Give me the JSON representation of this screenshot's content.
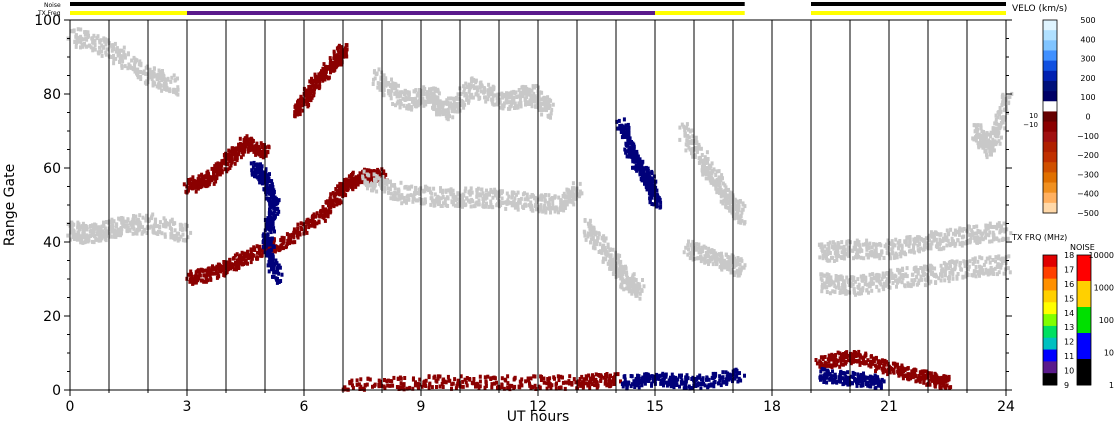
{
  "chart_data": {
    "type": "scatter",
    "title": "",
    "xlabel": "UT hours",
    "ylabel": "Range Gate",
    "xlim": [
      0,
      24
    ],
    "ylim": [
      0,
      100
    ],
    "x_ticks": [
      0,
      3,
      6,
      9,
      12,
      15,
      18,
      21,
      24
    ],
    "x_tick_labels": [
      "0",
      "3",
      "6",
      "9",
      "12",
      "15",
      "18",
      "21",
      "24"
    ],
    "y_ticks": [
      0,
      20,
      40,
      60,
      80,
      100
    ],
    "y_tick_labels": [
      "0",
      "20",
      "40",
      "60",
      "80",
      "100"
    ],
    "scan_boundaries": [
      1,
      2,
      3,
      4,
      5,
      6,
      7,
      8,
      9,
      10,
      11,
      12,
      13,
      14,
      15,
      16,
      17,
      18,
      19,
      20,
      21,
      22,
      23
    ],
    "data_gaps": [
      [
        17.3,
        19.0
      ]
    ],
    "strip_labels": [
      "Noise",
      "TX Freq"
    ],
    "noise_strip_segments": [
      [
        0,
        17.3,
        "#000000"
      ],
      [
        19.0,
        24,
        "#000000"
      ]
    ],
    "txfreq_strip_segments": [
      [
        0,
        3,
        "#ffff00"
      ],
      [
        3,
        15,
        "#5a1a8c"
      ],
      [
        15,
        17.3,
        "#ffff00"
      ],
      [
        19.0,
        24,
        "#ffff00"
      ]
    ],
    "echo_regions": [
      {
        "class": "ground_scatter",
        "color": "#c8c8c8",
        "points": [
          [
            0,
            43
          ],
          [
            0.5,
            42
          ],
          [
            1.2,
            44
          ],
          [
            2,
            45
          ],
          [
            3,
            42
          ]
        ]
      },
      {
        "class": "ground_scatter",
        "color": "#c8c8c8",
        "points": [
          [
            0,
            96
          ],
          [
            1,
            92
          ],
          [
            2,
            85
          ],
          [
            2.7,
            82
          ]
        ]
      },
      {
        "class": "negative_velocity",
        "color": "#8b0000",
        "points": [
          [
            3,
            55
          ],
          [
            3.5,
            57
          ],
          [
            4,
            62
          ],
          [
            4.5,
            67
          ],
          [
            5,
            64
          ]
        ]
      },
      {
        "class": "negative_velocity",
        "color": "#8b0000",
        "points": [
          [
            3,
            30
          ],
          [
            3.8,
            32
          ],
          [
            4.5,
            36
          ],
          [
            5.5,
            40
          ],
          [
            6.5,
            48
          ],
          [
            7,
            55
          ],
          [
            7.5,
            58
          ],
          [
            8,
            58
          ]
        ]
      },
      {
        "class": "negative_velocity",
        "color": "#8b0000",
        "points": [
          [
            5.8,
            75
          ],
          [
            6.2,
            82
          ],
          [
            6.7,
            88
          ],
          [
            7,
            92
          ]
        ]
      },
      {
        "class": "positive_velocity",
        "color": "#00007a",
        "points": [
          [
            4.7,
            60
          ],
          [
            5,
            57
          ],
          [
            5.2,
            50
          ],
          [
            5,
            40
          ],
          [
            5.3,
            30
          ]
        ]
      },
      {
        "class": "ground_scatter",
        "color": "#c8c8c8",
        "points": [
          [
            7.5,
            57
          ],
          [
            8.5,
            53
          ],
          [
            9.5,
            52
          ],
          [
            10.5,
            52
          ],
          [
            11.5,
            51
          ],
          [
            12.5,
            50
          ],
          [
            13,
            54
          ]
        ]
      },
      {
        "class": "ground_scatter",
        "color": "#c8c8c8",
        "points": [
          [
            7.8,
            85
          ],
          [
            8.5,
            78
          ],
          [
            9.2,
            80
          ],
          [
            9.6,
            75
          ],
          [
            10.3,
            82
          ],
          [
            11.2,
            78
          ],
          [
            11.8,
            80
          ],
          [
            12.3,
            75
          ]
        ]
      },
      {
        "class": "positive_velocity",
        "color": "#00007a",
        "points": [
          [
            14.1,
            72
          ],
          [
            14.4,
            63
          ],
          [
            14.8,
            57
          ],
          [
            15,
            50
          ]
        ]
      },
      {
        "class": "ground_scatter",
        "color": "#c8c8c8",
        "points": [
          [
            13.2,
            44
          ],
          [
            13.8,
            36
          ],
          [
            14.2,
            30
          ],
          [
            14.6,
            27
          ]
        ]
      },
      {
        "class": "ground_scatter",
        "color": "#c8c8c8",
        "points": [
          [
            15.7,
            70
          ],
          [
            16.3,
            60
          ],
          [
            16.8,
            52
          ],
          [
            17.2,
            47
          ]
        ]
      },
      {
        "class": "ground_scatter",
        "color": "#c8c8c8",
        "points": [
          [
            15.8,
            38
          ],
          [
            16.6,
            35
          ],
          [
            17.2,
            33
          ]
        ]
      },
      {
        "class": "negative_velocity",
        "color": "#8b0000",
        "points": [
          [
            7,
            1
          ],
          [
            9,
            2
          ],
          [
            11,
            2
          ],
          [
            13,
            2
          ],
          [
            14,
            3
          ]
        ]
      },
      {
        "class": "positive_velocity",
        "color": "#00007a",
        "points": [
          [
            14.2,
            2
          ],
          [
            15,
            3
          ],
          [
            16,
            2
          ],
          [
            17.2,
            4
          ]
        ]
      },
      {
        "class": "ground_scatter",
        "color": "#c8c8c8",
        "points": [
          [
            19.2,
            37
          ],
          [
            20,
            38
          ],
          [
            21,
            38
          ],
          [
            22,
            40
          ],
          [
            23,
            42
          ],
          [
            24,
            43
          ]
        ]
      },
      {
        "class": "ground_scatter",
        "color": "#c8c8c8",
        "points": [
          [
            19.2,
            29
          ],
          [
            20,
            28
          ],
          [
            21,
            30
          ],
          [
            22,
            31
          ],
          [
            23,
            33
          ],
          [
            24,
            34
          ]
        ]
      },
      {
        "class": "ground_scatter",
        "color": "#c8c8c8",
        "points": [
          [
            23.2,
            70
          ],
          [
            23.6,
            65
          ],
          [
            24,
            80
          ]
        ]
      },
      {
        "class": "negative_velocity",
        "color": "#8b0000",
        "points": [
          [
            19.2,
            7
          ],
          [
            20,
            9
          ],
          [
            21,
            6
          ],
          [
            22,
            3
          ],
          [
            22.5,
            2
          ]
        ]
      },
      {
        "class": "positive_velocity",
        "color": "#00007a",
        "points": [
          [
            19.2,
            4
          ],
          [
            20,
            3
          ],
          [
            20.8,
            2
          ]
        ]
      }
    ],
    "colorbars": [
      {
        "label": "VELO (km/s)",
        "tick_labels": [
          "500",
          "400",
          "300",
          "200",
          "100",
          "0",
          "−100",
          "−200",
          "−300",
          "−400",
          "−500"
        ],
        "split_labels": [
          "10",
          "−10"
        ],
        "colors": [
          "#dff4ff",
          "#b0e0ff",
          "#80c4ff",
          "#4090ff",
          "#1050e0",
          "#0020b0",
          "#00107a",
          "#000066",
          "#ffffff",
          "#660000",
          "#8b0000",
          "#a01010",
          "#b02000",
          "#c03000",
          "#d05000",
          "#e07000",
          "#f09020",
          "#ffb060",
          "#ffd8a8"
        ]
      },
      {
        "label": "TX FRQ (MHz)",
        "tick_labels": [
          "18",
          "17",
          "16",
          "15",
          "14",
          "13",
          "12",
          "11",
          "10",
          "9"
        ],
        "colors": [
          "#e00000",
          "#ff4000",
          "#ff9000",
          "#ffd000",
          "#ffff00",
          "#80ff00",
          "#00e060",
          "#00c0c0",
          "#0000ff",
          "#5a1a8c",
          "#000000"
        ]
      },
      {
        "label": "NOISE",
        "tick_labels": [
          "10000",
          "1000",
          "100",
          "10",
          "1"
        ],
        "colors": [
          "#ff0000",
          "#ffd000",
          "#00e000",
          "#0000ff",
          "#000000"
        ]
      }
    ]
  }
}
